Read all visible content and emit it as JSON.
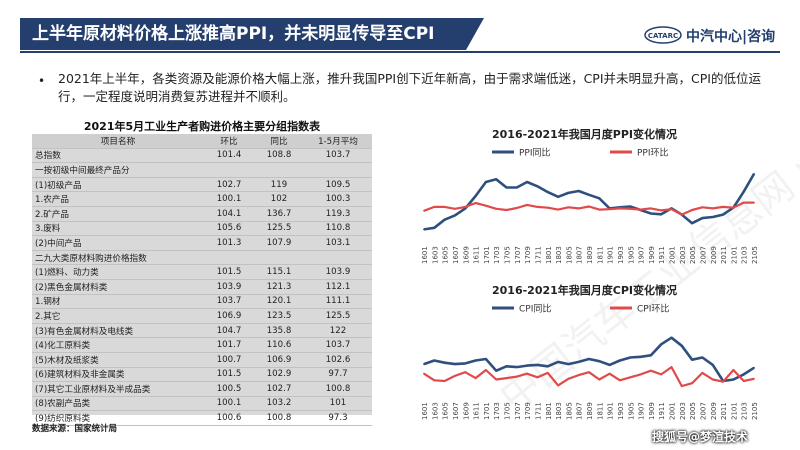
{
  "header": {
    "title": "上半年原材料价格上涨推高PPI，并未明显传导至CPI",
    "brand": "中汽中心|咨询",
    "logo_text": "CATARC"
  },
  "summary": "2021年上半年，各类资源及能源价格大幅上涨，推升我国PPI创下近年新高，由于需求端低迷，CPI并未明显升高，CPI的低位运行，一定程度说明消费复苏进程并不顺利。",
  "table": {
    "title": "2021年5月工业生产者购进价格主要分组指数表",
    "columns": [
      "项目名称",
      "环比",
      "同比",
      "1-5月平均"
    ],
    "rows": [
      [
        "总指数",
        "101.4",
        "108.8",
        "103.7"
      ],
      [
        "一按初级中间最终产品分",
        "",
        "",
        ""
      ],
      [
        "(1)初级产品",
        "102.7",
        "119",
        "109.5"
      ],
      [
        "1.农产品",
        "100.1",
        "102",
        "100.3"
      ],
      [
        "2.矿产品",
        "104.1",
        "136.7",
        "119.3"
      ],
      [
        "3.废料",
        "105.6",
        "125.5",
        "110.8"
      ],
      [
        "(2)中间产品",
        "101.3",
        "107.9",
        "103.1"
      ],
      [
        "二九大类原材料购进价格指数",
        "",
        "",
        ""
      ],
      [
        "(1)燃料、动力类",
        "101.5",
        "115.1",
        "103.9"
      ],
      [
        "(2)黑色金属材料类",
        "103.9",
        "121.3",
        "112.1"
      ],
      [
        "1.钢材",
        "103.7",
        "120.1",
        "111.1"
      ],
      [
        "2.其它",
        "106.9",
        "123.5",
        "125.5"
      ],
      [
        "(3)有色金属材料及电线类",
        "104.7",
        "135.8",
        "122"
      ],
      [
        "(4)化工原料类",
        "101.7",
        "110.6",
        "103.7"
      ],
      [
        "(5)木材及纸浆类",
        "100.7",
        "106.9",
        "102.6"
      ],
      [
        "(6)建筑材料及非金属类",
        "101.5",
        "102.9",
        "97.7"
      ],
      [
        "(7)其它工业原材料及半成品类",
        "100.5",
        "102.7",
        "100.8"
      ],
      [
        "(8)农副产品类",
        "100.1",
        "103.2",
        "101"
      ],
      [
        "(9)纺织原料类",
        "100.6",
        "100.8",
        "97.3"
      ]
    ]
  },
  "source_note": "数据来源：国家统计局",
  "watermark": "中国汽车工业信息网 www.autoinfo.org.cn",
  "credit": "搜狐号@梦渲技术",
  "colors": {
    "header_bg": "#243f6e",
    "series_yoy": "#2f4f7f",
    "series_mom": "#e04a4a"
  },
  "chart_data": [
    {
      "type": "line",
      "title": "2016-2021年我国月度PPI变化情况",
      "x": [
        "1601",
        "1603",
        "1605",
        "1607",
        "1609",
        "1611",
        "1701",
        "1703",
        "1705",
        "1707",
        "1709",
        "1711",
        "1801",
        "1803",
        "1805",
        "1807",
        "1809",
        "1811",
        "1901",
        "1903",
        "1905",
        "1907",
        "1909",
        "1911",
        "2001",
        "2003",
        "2005",
        "2007",
        "2009",
        "2011",
        "2101",
        "2103",
        "2105"
      ],
      "ylim": [
        -7,
        10
      ],
      "legend": "top-left",
      "series": [
        {
          "name": "PPI同比",
          "color": "#2f4f7f",
          "values": [
            -5.3,
            -4.9,
            -2.8,
            -1.7,
            0.1,
            3.3,
            6.9,
            7.6,
            5.5,
            5.5,
            6.9,
            5.8,
            4.3,
            3.1,
            4.1,
            4.6,
            3.6,
            2.7,
            0.1,
            0.4,
            0.6,
            -0.3,
            -1.2,
            -1.4,
            0.1,
            -1.5,
            -3.7,
            -2.4,
            -2.1,
            -1.5,
            0.3,
            4.4,
            9.0
          ]
        },
        {
          "name": "PPI环比",
          "color": "#e04a4a",
          "values": [
            -0.5,
            0.5,
            0.5,
            0.0,
            0.5,
            1.5,
            0.8,
            0.0,
            -0.3,
            0.2,
            1.0,
            0.5,
            0.3,
            -0.2,
            0.4,
            0.1,
            0.6,
            -0.2,
            -0.1,
            0.1,
            0.0,
            -0.2,
            0.1,
            -0.4,
            -0.1,
            -1.5,
            -0.3,
            0.4,
            0.1,
            0.5,
            0.3,
            1.6,
            1.6
          ]
        }
      ]
    },
    {
      "type": "line",
      "title": "2016-2021年我国月度CPI变化情况",
      "x": [
        "1601",
        "1603",
        "1605",
        "1607",
        "1609",
        "1611",
        "1701",
        "1703",
        "1705",
        "1707",
        "1709",
        "1711",
        "1801",
        "1803",
        "1805",
        "1807",
        "1809",
        "1811",
        "1901",
        "1903",
        "1905",
        "1907",
        "1909",
        "1911",
        "2001",
        "2003",
        "2005",
        "2007",
        "2009",
        "2011",
        "2101",
        "2103",
        "2105"
      ],
      "ylim": [
        -2,
        7
      ],
      "legend": "top-left",
      "series": [
        {
          "name": "CPI同比",
          "color": "#2f4f7f",
          "values": [
            1.8,
            2.3,
            2.0,
            1.8,
            1.9,
            2.3,
            2.5,
            0.9,
            1.5,
            1.4,
            1.6,
            1.7,
            1.5,
            2.1,
            1.8,
            2.1,
            2.5,
            2.2,
            1.7,
            2.3,
            2.7,
            2.8,
            3.0,
            4.5,
            5.4,
            4.3,
            2.4,
            2.7,
            1.7,
            -0.5,
            -0.3,
            0.4,
            1.3
          ]
        },
        {
          "name": "CPI环比",
          "color": "#e04a4a",
          "values": [
            0.5,
            -0.4,
            -0.5,
            0.2,
            0.7,
            -0.1,
            1.0,
            -0.3,
            -0.1,
            0.1,
            0.5,
            0.0,
            0.6,
            -1.1,
            -0.2,
            0.3,
            0.7,
            -0.3,
            0.5,
            -0.4,
            0.0,
            0.4,
            0.9,
            0.4,
            1.4,
            -1.2,
            -0.8,
            0.6,
            -0.3,
            -0.6,
            1.0,
            -0.5,
            -0.2
          ]
        }
      ]
    }
  ]
}
